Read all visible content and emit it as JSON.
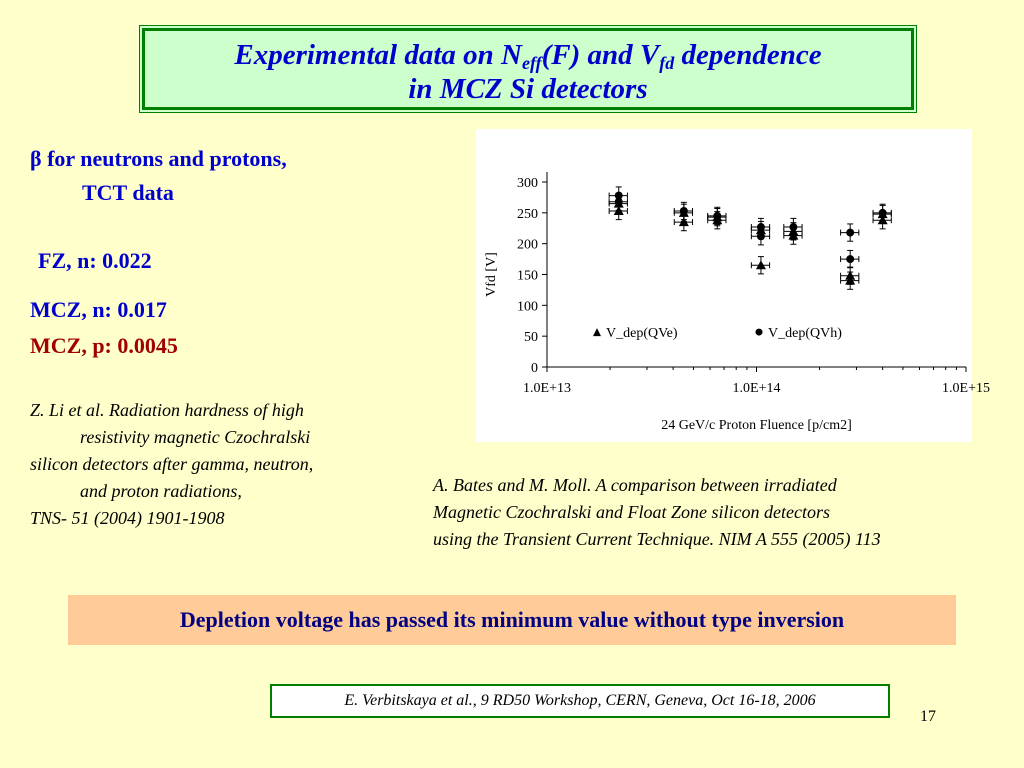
{
  "title": {
    "part1": "Experimental data on N",
    "sub1": "eff",
    "part2": "(F) and V",
    "sub2": "fd",
    "part3": " dependence",
    "line2": "in MCZ Si detectors"
  },
  "left": {
    "beta_symbol": "β",
    "beta_line1": " for neutrons and protons,",
    "beta_line2": "TCT data",
    "fz": "FZ, n:  0.022",
    "mcz_n": "MCZ, n:  0.017",
    "mcz_p": "MCZ, p:  0.0045",
    "ref_lines": [
      "Z. Li et al. Radiation hardness of high",
      "resistivity magnetic Czochralski",
      "silicon detectors after gamma, neutron,",
      "and proton radiations,",
      "TNS- 51 (2004) 1901-1908"
    ]
  },
  "chart_caption": [
    "A. Bates and M. Moll. A comparison between irradiated",
    "Magnetic Czochralski and Float Zone silicon detectors",
    "using the Transient Current Technique. NIM A 555 (2005) 113"
  ],
  "conclusion": "Depletion voltage has passed its minimum value without type inversion",
  "citation": "E. Verbitskaya et al., 9 RD50 Workshop, CERN, Geneva, Oct 16-18, 2006",
  "page_number": "17",
  "chart_data": {
    "type": "scatter",
    "xlabel": "24 GeV/c Proton Fluence [p/cm2]",
    "ylabel": "Vfd [V]",
    "x_scale": "log",
    "xlim": [
      10000000000000.0,
      1000000000000000.0
    ],
    "ylim": [
      0,
      300
    ],
    "x_tick_values": [
      10000000000000.0,
      100000000000000.0,
      1000000000000000.0
    ],
    "x_tick_labels": [
      "1.0E+13",
      "1.0E+14",
      "1.0E+15"
    ],
    "y_ticks": [
      0,
      50,
      100,
      150,
      200,
      250,
      300
    ],
    "legend_position": "inside-bottom",
    "series": [
      {
        "name": "V_dep(QVe)",
        "marker": "triangle",
        "points": [
          {
            "x": 22000000000000.0,
            "y": 265
          },
          {
            "x": 22000000000000.0,
            "y": 253
          },
          {
            "x": 45000000000000.0,
            "y": 235
          },
          {
            "x": 45000000000000.0,
            "y": 250
          },
          {
            "x": 65000000000000.0,
            "y": 238
          },
          {
            "x": 65000000000000.0,
            "y": 243
          },
          {
            "x": 105000000000000.0,
            "y": 165
          },
          {
            "x": 105000000000000.0,
            "y": 222
          },
          {
            "x": 150000000000000.0,
            "y": 213
          },
          {
            "x": 150000000000000.0,
            "y": 220
          },
          {
            "x": 280000000000000.0,
            "y": 140
          },
          {
            "x": 280000000000000.0,
            "y": 148
          },
          {
            "x": 400000000000000.0,
            "y": 238
          },
          {
            "x": 400000000000000.0,
            "y": 248
          }
        ]
      },
      {
        "name": "V_dep(QVh)",
        "marker": "circle",
        "points": [
          {
            "x": 22000000000000.0,
            "y": 278
          },
          {
            "x": 22000000000000.0,
            "y": 268
          },
          {
            "x": 45000000000000.0,
            "y": 253
          },
          {
            "x": 65000000000000.0,
            "y": 245
          },
          {
            "x": 105000000000000.0,
            "y": 227
          },
          {
            "x": 105000000000000.0,
            "y": 212
          },
          {
            "x": 150000000000000.0,
            "y": 227
          },
          {
            "x": 280000000000000.0,
            "y": 218
          },
          {
            "x": 280000000000000.0,
            "y": 175
          },
          {
            "x": 400000000000000.0,
            "y": 250
          }
        ]
      }
    ]
  }
}
